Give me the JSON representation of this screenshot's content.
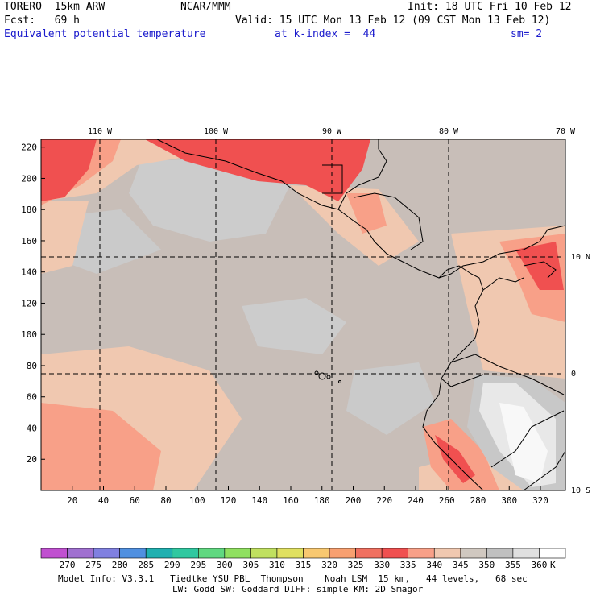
{
  "header": {
    "model": "TORERO  15km ARW",
    "center": "NCAR/MMM",
    "init": "Init: 18 UTC Fri 10 Feb 12",
    "fcst": "Fcst:   69 h",
    "valid": "Valid: 15 UTC Mon 13 Feb 12 (09 CST Mon 13 Feb 12)",
    "field": "Equivalent potential temperature",
    "level": "at k-index =  44",
    "smooth": "sm= 2"
  },
  "map": {
    "lon_labels": [
      "110 W",
      "100 W",
      "90 W",
      "80 W",
      "70 W"
    ],
    "lat_labels": [
      "10 N",
      "0",
      "10 S"
    ],
    "y_ticks": [
      "220",
      "200",
      "180",
      "160",
      "140",
      "120",
      "100",
      "80",
      "60",
      "40",
      "20"
    ],
    "x_ticks": [
      "20",
      "40",
      "60",
      "80",
      "100",
      "120",
      "140",
      "160",
      "180",
      "200",
      "220",
      "240",
      "260",
      "280",
      "300",
      "320"
    ]
  },
  "colorbar": {
    "labels": [
      "270",
      "275",
      "280",
      "285",
      "290",
      "295",
      "300",
      "305",
      "310",
      "315",
      "320",
      "325",
      "330",
      "335",
      "340",
      "345",
      "350",
      "355",
      "360"
    ],
    "unit": "K",
    "colors": [
      "#c050d0",
      "#a070d0",
      "#8080e0",
      "#5090e0",
      "#20b0b0",
      "#30c8a0",
      "#60d880",
      "#90e060",
      "#c0e060",
      "#e0e060",
      "#f8c870",
      "#f8a070",
      "#f07060",
      "#f05050",
      "#f8a088",
      "#f0c8b0",
      "#d0c8c0",
      "#c0c0c0",
      "#e0e0e0",
      "#ffffff"
    ]
  },
  "footer": {
    "line1": "Model Info: V3.3.1   Tiedtke YSU PBL  Thompson    Noah LSM  15 km,   44 levels,   68 sec",
    "line2": "LW: Godd SW: Goddard DIFF: simple KM: 2D Smagor"
  }
}
